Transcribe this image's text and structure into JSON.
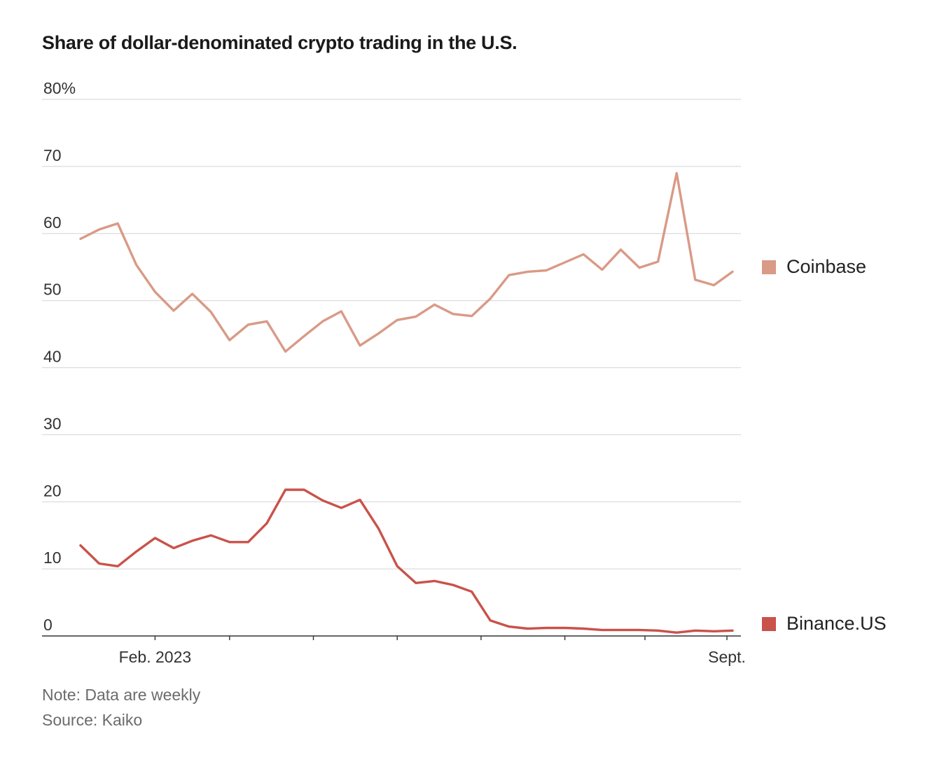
{
  "header": {
    "title": "Share of dollar-denominated crypto trading in the U.S."
  },
  "footer": {
    "note": "Note: Data are weekly",
    "source": "Source: Kaiko"
  },
  "colors": {
    "coinbase": "#d99a86",
    "binance": "#c9524a",
    "grid": "#dcdcdc",
    "axis": "#333333"
  },
  "chart_data": {
    "type": "line",
    "title": "Share of dollar-denominated crypto trading in the U.S.",
    "xlabel": "",
    "ylabel": "",
    "ylim": [
      0,
      80
    ],
    "yticks": [
      {
        "value": 0,
        "label": "0"
      },
      {
        "value": 10,
        "label": "10"
      },
      {
        "value": 20,
        "label": "20"
      },
      {
        "value": 30,
        "label": "30"
      },
      {
        "value": 40,
        "label": "40"
      },
      {
        "value": 50,
        "label": "50"
      },
      {
        "value": 60,
        "label": "60"
      },
      {
        "value": 70,
        "label": "70"
      },
      {
        "value": 80,
        "label": "80%"
      }
    ],
    "xticks": [
      {
        "label": "Feb. 2023",
        "index": 4
      },
      {
        "label": "",
        "index": 8
      },
      {
        "label": "",
        "index": 12.5
      },
      {
        "label": "",
        "index": 17
      },
      {
        "label": "",
        "index": 21.5
      },
      {
        "label": "",
        "index": 26
      },
      {
        "label": "",
        "index": 30.3
      },
      {
        "label": "",
        "index": 34.7
      },
      {
        "label": "Sept.",
        "index": 34.7
      }
    ],
    "grid": true,
    "legend": "right",
    "series": [
      {
        "name": "Coinbase",
        "color": "#d99a86",
        "values": [
          59.2,
          60.6,
          61.5,
          55.3,
          51.3,
          48.5,
          51.0,
          48.3,
          44.1,
          46.4,
          46.9,
          42.4,
          44.7,
          46.9,
          48.4,
          43.3,
          45.1,
          47.1,
          47.6,
          49.4,
          48.0,
          47.7,
          50.3,
          53.8,
          54.3,
          54.5,
          55.7,
          56.9,
          54.6,
          57.6,
          54.9,
          55.8,
          69.0,
          53.1,
          52.3,
          54.3
        ]
      },
      {
        "name": "Binance.US",
        "color": "#c9524a",
        "values": [
          13.5,
          10.8,
          10.4,
          12.6,
          14.6,
          13.1,
          14.2,
          15.0,
          14.0,
          14.0,
          16.8,
          21.8,
          21.8,
          20.2,
          19.1,
          20.3,
          16.0,
          10.4,
          7.9,
          8.2,
          7.6,
          6.6,
          2.3,
          1.4,
          1.1,
          1.2,
          1.2,
          1.1,
          0.9,
          0.9,
          0.9,
          0.8,
          0.5,
          0.8,
          0.7,
          0.8
        ]
      }
    ]
  }
}
